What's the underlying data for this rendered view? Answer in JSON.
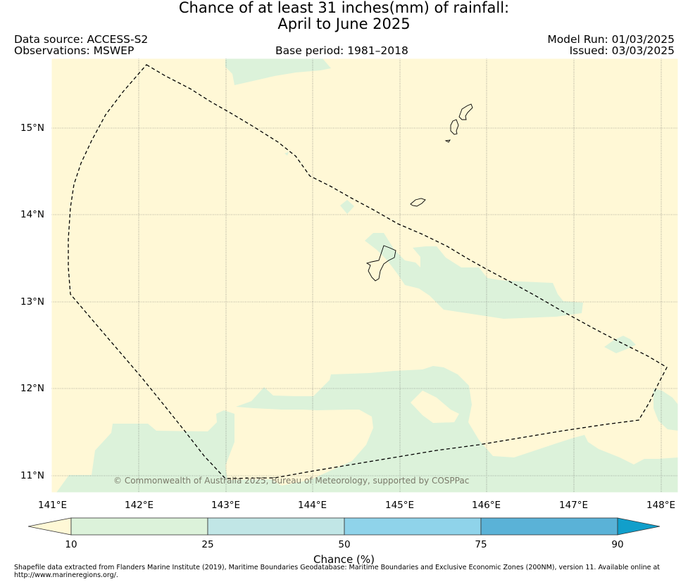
{
  "title": {
    "line1": "Chance of at least 31 inches(mm) of rainfall:",
    "line2": "April to June 2025"
  },
  "header": {
    "data_source": "Data source: ACCESS-S2",
    "observations": "Observations: MSWEP",
    "base_period": "Base period: 1981–2018",
    "model_run": "Model Run: 01/03/2025",
    "issued": "Issued: 03/03/2025"
  },
  "map": {
    "lon_range": [
      141.0,
      148.2
    ],
    "lat_range": [
      10.8,
      15.75
    ],
    "lon_ticks": [
      {
        "value": 141,
        "label": "141°E"
      },
      {
        "value": 142,
        "label": "142°E"
      },
      {
        "value": 143,
        "label": "143°E"
      },
      {
        "value": 144,
        "label": "144°E"
      },
      {
        "value": 145,
        "label": "145°E"
      },
      {
        "value": 146,
        "label": "146°E"
      },
      {
        "value": 147,
        "label": "147°E"
      },
      {
        "value": 148,
        "label": "148°E"
      }
    ],
    "lat_ticks": [
      {
        "value": 15,
        "label": "15°N"
      },
      {
        "value": 14,
        "label": "14°N"
      },
      {
        "value": 13,
        "label": "13°N"
      },
      {
        "value": 12,
        "label": "12°N"
      },
      {
        "value": 11,
        "label": "11°N"
      }
    ],
    "copyright": "© Commonwealth of Australia 2025, Bureau of Meteorology, supported by COSPPac",
    "colors": {
      "below_10": "#fff8d6",
      "band_10_25": "#dcf2da",
      "band_25_50": "#c1e6e6",
      "band_50_75": "#8fd3ea",
      "band_75_90": "#5ab2d7",
      "above_90": "#119fcb"
    }
  },
  "colorbar": {
    "tick_labels": [
      "10",
      "25",
      "50",
      "75",
      "90"
    ],
    "label": "Chance (%)"
  },
  "footer": {
    "line1": "Shapefile data extracted from Flanders Marine Institute (2019), Maritime Boundaries Geodatabase: Maritime Boundaries and Exclusive Economic Zones (200NM), version 11. Available online at",
    "line2": "http://www.marineregions.org/."
  }
}
